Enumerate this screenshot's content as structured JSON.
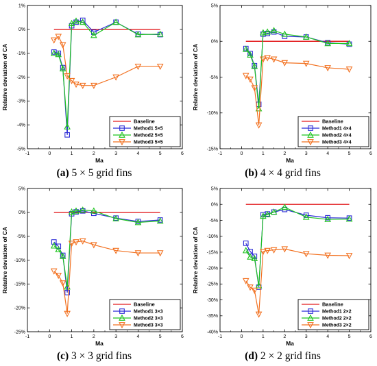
{
  "figure": {
    "panels": [
      {
        "tag": "(a)",
        "caption": "5 × 5 grid fins",
        "xlabel": "Ma",
        "ylabel": "Relative deviation of CA",
        "legend_title": "Baseline",
        "chart": {
          "type": "line",
          "ylim": [
            -5,
            1
          ],
          "yticks": [
            1,
            0,
            -1,
            -2,
            -3,
            -4,
            -5
          ],
          "tick_suffix": "%"
        }
      },
      {
        "tag": "(b)",
        "caption": "4 × 4 grid fins",
        "xlabel": "Ma",
        "ylabel": "Relative deviation of CA",
        "legend_title": "Baseline",
        "chart": {
          "type": "line",
          "ylim": [
            -15,
            5
          ],
          "yticks": [
            5,
            0,
            -5,
            -10,
            -15
          ],
          "tick_suffix": "%"
        }
      },
      {
        "tag": "(c)",
        "caption": "3 × 3 grid fins",
        "xlabel": "Ma",
        "ylabel": "Relative deviation of CA",
        "legend_title": "Baseline",
        "chart": {
          "type": "line",
          "ylim": [
            -25,
            5
          ],
          "yticks": [
            5,
            0,
            -5,
            -10,
            -15,
            -20,
            -25
          ],
          "tick_suffix": "%"
        }
      },
      {
        "tag": "(d)",
        "caption": "2 × 2 grid fins",
        "xlabel": "Ma",
        "ylabel": "Relative deviation of CA",
        "legend_title": "Baseline",
        "chart": {
          "type": "line",
          "ylim": [
            -40,
            5
          ],
          "yticks": [
            5,
            0,
            -5,
            -10,
            -15,
            -20,
            -25,
            -30,
            -35,
            -40
          ],
          "tick_suffix": "%"
        }
      }
    ]
  },
  "chart_data": [
    {
      "type": "line",
      "title": "",
      "xlabel": "Ma",
      "ylabel": "Relative deviation of CA",
      "xlim": [
        -1,
        6
      ],
      "ylim": [
        -5,
        1
      ],
      "xticks": [
        -1,
        0,
        1,
        2,
        3,
        4,
        5,
        6
      ],
      "grid": false,
      "legend": "bottom-right",
      "series": [
        {
          "name": "Baseline",
          "color": "#e31a1c",
          "marker": "none",
          "x": [
            0.2,
            5
          ],
          "values": [
            0,
            0
          ]
        },
        {
          "name": "Method1 5×5",
          "color": "#2b2bd6",
          "marker": "square",
          "x": [
            0.2,
            0.4,
            0.6,
            0.8,
            1.0,
            1.2,
            1.5,
            2.0,
            3.0,
            4.0,
            5.0
          ],
          "values": [
            -0.95,
            -1.0,
            -1.6,
            -4.42,
            0.15,
            0.3,
            0.38,
            -0.12,
            0.3,
            -0.2,
            -0.22
          ]
        },
        {
          "name": "Method2 5×5",
          "color": "#1fc41f",
          "marker": "triangle-up",
          "x": [
            0.2,
            0.4,
            0.6,
            0.8,
            1.0,
            1.2,
            1.5,
            2.0,
            3.0,
            4.0,
            5.0
          ],
          "values": [
            -1.0,
            -1.05,
            -1.65,
            -4.08,
            0.25,
            0.35,
            0.3,
            -0.25,
            0.3,
            -0.22,
            -0.2
          ]
        },
        {
          "name": "Method3 5×5",
          "color": "#f2701f",
          "marker": "triangle-down",
          "x": [
            0.2,
            0.4,
            0.6,
            0.8,
            1.0,
            1.2,
            1.5,
            2.0,
            3.0,
            4.0,
            5.0
          ],
          "values": [
            -0.45,
            -0.3,
            -0.65,
            -1.95,
            -2.15,
            -2.3,
            -2.35,
            -2.35,
            -2.0,
            -1.55,
            -1.55
          ]
        }
      ]
    },
    {
      "type": "line",
      "title": "",
      "xlabel": "Ma",
      "ylabel": "Relative deviation of CA",
      "xlim": [
        -1,
        6
      ],
      "ylim": [
        -15,
        5
      ],
      "xticks": [
        -1,
        0,
        1,
        2,
        3,
        4,
        5,
        6
      ],
      "grid": false,
      "legend": "bottom-right",
      "series": [
        {
          "name": "Baseline",
          "color": "#e31a1c",
          "marker": "none",
          "x": [
            0.2,
            5
          ],
          "values": [
            0,
            0
          ]
        },
        {
          "name": "Method1 4×4",
          "color": "#2b2bd6",
          "marker": "square",
          "x": [
            0.2,
            0.4,
            0.6,
            0.8,
            1.0,
            1.2,
            1.5,
            2.0,
            3.0,
            4.0,
            5.0
          ],
          "values": [
            -1.0,
            -1.7,
            -3.4,
            -8.8,
            1.0,
            1.1,
            1.3,
            0.7,
            0.6,
            -0.2,
            -0.4
          ]
        },
        {
          "name": "Method2 4×4",
          "color": "#1fc41f",
          "marker": "triangle-up",
          "x": [
            0.2,
            0.4,
            0.6,
            0.8,
            1.0,
            1.2,
            1.5,
            2.0,
            3.0,
            4.0,
            5.0
          ],
          "values": [
            -1.1,
            -1.9,
            -3.5,
            -9.4,
            1.2,
            1.3,
            1.5,
            1.0,
            0.6,
            -0.3,
            -0.3
          ]
        },
        {
          "name": "Method3 4×4",
          "color": "#f2701f",
          "marker": "triangle-down",
          "x": [
            0.2,
            0.4,
            0.6,
            0.8,
            1.0,
            1.2,
            1.5,
            2.0,
            3.0,
            4.0,
            5.0
          ],
          "values": [
            -4.8,
            -5.3,
            -6.5,
            -11.7,
            -2.5,
            -2.3,
            -2.5,
            -3.0,
            -3.1,
            -3.7,
            -3.9
          ]
        }
      ]
    },
    {
      "type": "line",
      "title": "",
      "xlabel": "Ma",
      "ylabel": "Relative deviation of CA",
      "xlim": [
        -1,
        6
      ],
      "ylim": [
        -25,
        5
      ],
      "xticks": [
        -1,
        0,
        1,
        2,
        3,
        4,
        5,
        6
      ],
      "grid": false,
      "legend": "bottom-right",
      "series": [
        {
          "name": "Baseline",
          "color": "#e31a1c",
          "marker": "none",
          "x": [
            0.2,
            5
          ],
          "values": [
            0,
            0
          ]
        },
        {
          "name": "Method1 3×3",
          "color": "#2b2bd6",
          "marker": "square",
          "x": [
            0.2,
            0.4,
            0.6,
            0.8,
            1.0,
            1.2,
            1.5,
            2.0,
            3.0,
            4.0,
            5.0
          ],
          "values": [
            -6.2,
            -7.1,
            -9.0,
            -16.8,
            -0.3,
            0.1,
            0.3,
            -0.2,
            -1.2,
            -1.9,
            -1.6
          ]
        },
        {
          "name": "Method2 3×3",
          "color": "#1fc41f",
          "marker": "triangle-up",
          "x": [
            0.2,
            0.4,
            0.6,
            0.8,
            1.0,
            1.2,
            1.5,
            2.0,
            3.0,
            4.0,
            5.0
          ],
          "values": [
            -7.0,
            -7.8,
            -9.2,
            -15.6,
            0.1,
            0.3,
            0.5,
            0.3,
            -1.3,
            -2.1,
            -1.8
          ]
        },
        {
          "name": "Method3 3×3",
          "color": "#f2701f",
          "marker": "triangle-down",
          "x": [
            0.2,
            0.4,
            0.6,
            0.8,
            1.0,
            1.2,
            1.5,
            2.0,
            3.0,
            4.0,
            5.0
          ],
          "values": [
            -12.3,
            -13.2,
            -14.8,
            -21.2,
            -6.5,
            -6.2,
            -6.0,
            -6.8,
            -8.0,
            -8.5,
            -8.5
          ]
        }
      ]
    },
    {
      "type": "line",
      "title": "",
      "xlabel": "Ma",
      "ylabel": "Relative deviation of CA",
      "xlim": [
        -1,
        6
      ],
      "ylim": [
        -40,
        5
      ],
      "xticks": [
        -1,
        0,
        1,
        2,
        3,
        4,
        5,
        6
      ],
      "grid": false,
      "legend": "bottom-right",
      "series": [
        {
          "name": "Baseline",
          "color": "#e31a1c",
          "marker": "none",
          "x": [
            0.2,
            5
          ],
          "values": [
            0,
            0
          ]
        },
        {
          "name": "Method1 2×2",
          "color": "#2b2bd6",
          "marker": "square",
          "x": [
            0.2,
            0.4,
            0.6,
            0.8,
            1.0,
            1.2,
            1.5,
            2.0,
            3.0,
            4.0,
            5.0
          ],
          "values": [
            -12.2,
            -14.8,
            -16.3,
            -26.0,
            -3.2,
            -3.0,
            -2.4,
            -1.6,
            -3.4,
            -4.2,
            -4.3
          ]
        },
        {
          "name": "Method2 2×2",
          "color": "#1fc41f",
          "marker": "triangle-up",
          "x": [
            0.2,
            0.4,
            0.6,
            0.8,
            1.0,
            1.2,
            1.5,
            2.0,
            3.0,
            4.0,
            5.0
          ],
          "values": [
            -14.5,
            -16.5,
            -17.0,
            -25.5,
            -3.7,
            -3.2,
            -2.4,
            -0.9,
            -4.0,
            -4.7,
            -4.6
          ]
        },
        {
          "name": "Method3 2×2",
          "color": "#f2701f",
          "marker": "triangle-down",
          "x": [
            0.2,
            0.4,
            0.6,
            0.8,
            1.0,
            1.2,
            1.5,
            2.0,
            3.0,
            4.0,
            5.0
          ],
          "values": [
            -24.0,
            -26.0,
            -27.0,
            -34.5,
            -14.8,
            -14.5,
            -14.3,
            -14.0,
            -15.5,
            -16.0,
            -16.1
          ]
        }
      ]
    }
  ]
}
